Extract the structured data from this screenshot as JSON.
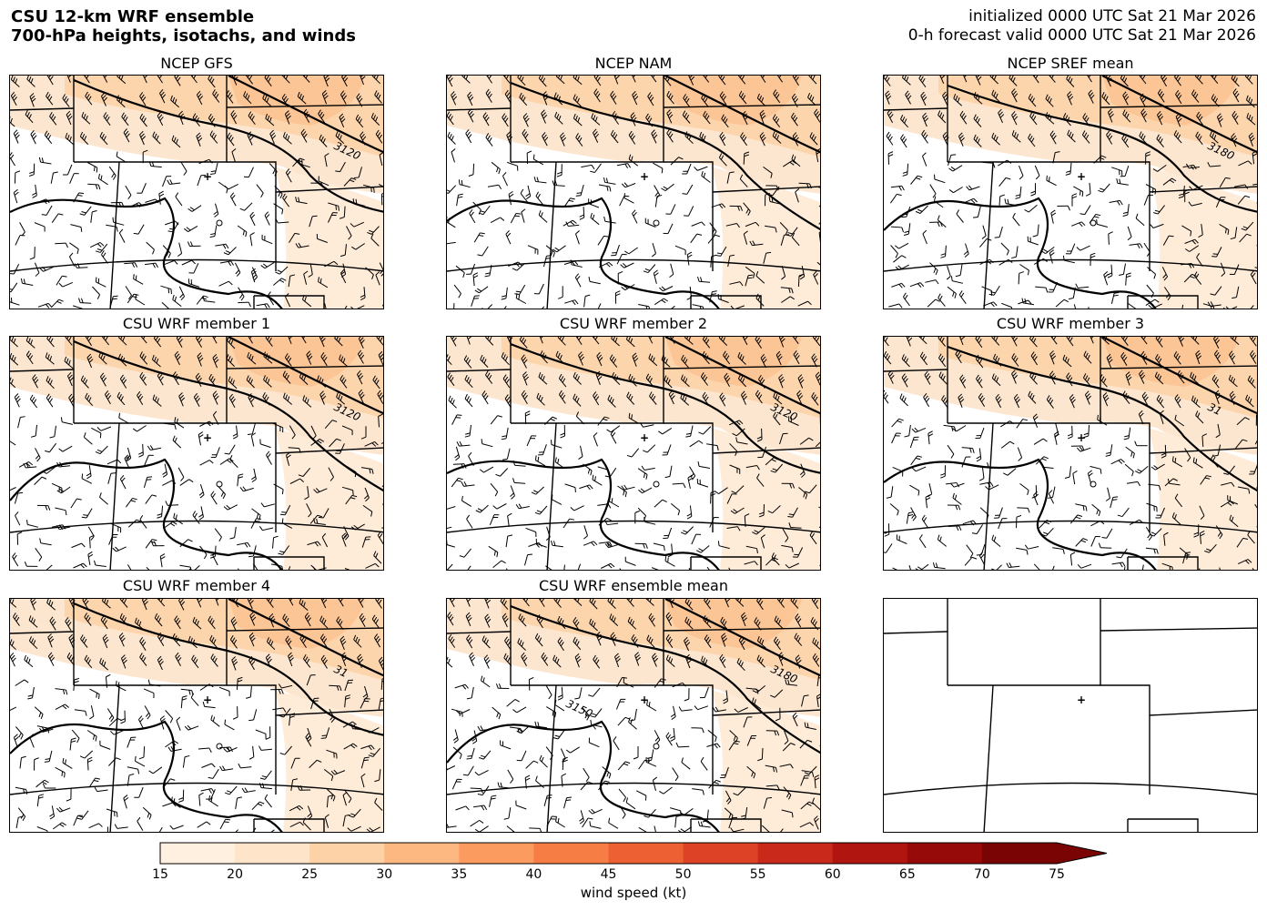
{
  "header": {
    "title_line1": "CSU 12-km WRF ensemble",
    "title_line2": "700-hPa heights, isotachs, and winds",
    "init_line": "initialized 0000 UTC Sat 21 Mar 2026",
    "valid_line": "0-h forecast valid 0000 UTC Sat 21 Mar 2026"
  },
  "panels": [
    {
      "title": "NCEP GFS",
      "contour_labels": [
        "3120"
      ]
    },
    {
      "title": "NCEP NAM",
      "contour_labels": []
    },
    {
      "title": "NCEP SREF mean",
      "contour_labels": [
        "3180"
      ]
    },
    {
      "title": "CSU WRF member 1",
      "contour_labels": [
        "3120"
      ]
    },
    {
      "title": "CSU WRF member 2",
      "contour_labels": [
        "3120"
      ]
    },
    {
      "title": "CSU WRF member 3",
      "contour_labels": [
        "31"
      ]
    },
    {
      "title": "CSU WRF member 4",
      "contour_labels": [
        "31"
      ]
    },
    {
      "title": "CSU WRF ensemble mean",
      "contour_labels": [
        "3180",
        "3150"
      ]
    },
    {
      "title": "",
      "contour_labels": []
    }
  ],
  "colorbar": {
    "label": "wind speed (kt)",
    "ticks": [
      "15",
      "20",
      "25",
      "30",
      "35",
      "40",
      "45",
      "50",
      "55",
      "60",
      "65",
      "70",
      "75"
    ],
    "colors": [
      "#fff0e0",
      "#fee4c8",
      "#fdd2a6",
      "#fdb882",
      "#fc9b5f",
      "#f67e45",
      "#ec6034",
      "#dd4226",
      "#c9291a",
      "#b01510",
      "#960a0a",
      "#7a0404"
    ],
    "extend": "max"
  }
}
